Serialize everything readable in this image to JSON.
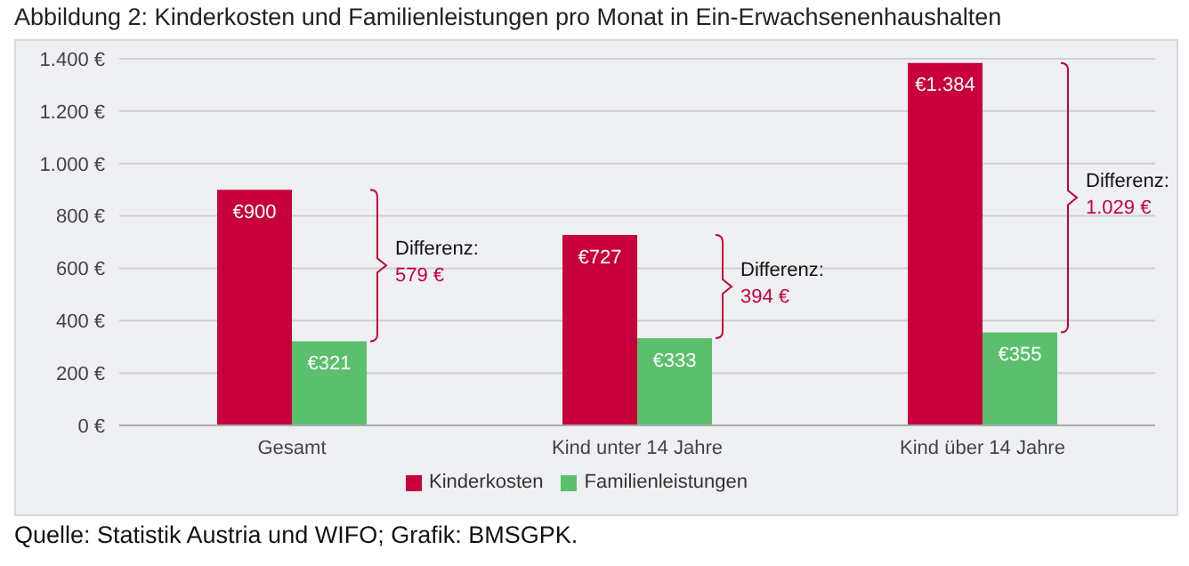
{
  "chart_data": {
    "type": "bar",
    "title": "Abbildung 2: Kinderkosten und Familienleistungen pro Monat in Ein-Erwachsenenhaushalten",
    "categories": [
      "Gesamt",
      "Kind unter 14 Jahre",
      "Kind über 14 Jahre"
    ],
    "series": [
      {
        "name": "Kinderkosten",
        "color": "#c8003c",
        "values": [
          900,
          727,
          1384
        ],
        "value_labels": [
          "€900",
          "€727",
          "€1.384"
        ]
      },
      {
        "name": "Familienleistungen",
        "color": "#5cbf6e",
        "values": [
          321,
          333,
          355
        ],
        "value_labels": [
          "€321",
          "€333",
          "€355"
        ]
      }
    ],
    "ylim": [
      0,
      1400
    ],
    "yticks": [
      {
        "value": 0,
        "label": "0 €"
      },
      {
        "value": 200,
        "label": "200 €"
      },
      {
        "value": 400,
        "label": "400 €"
      },
      {
        "value": 600,
        "label": "600 €"
      },
      {
        "value": 800,
        "label": "800 €"
      },
      {
        "value": 1000,
        "label": "1.000 €"
      },
      {
        "value": 1200,
        "label": "1.200 €"
      },
      {
        "value": 1400,
        "label": "1.400 €"
      }
    ],
    "grid": "y",
    "legend": "bottom",
    "annotations": [
      "Differenz:\n579 €",
      "Differenz:\n394 €",
      "Differenz:\n1.029 €",
      "Quelle: Statistik Austria und WIFO; Grafik: BMSGPK."
    ]
  }
}
